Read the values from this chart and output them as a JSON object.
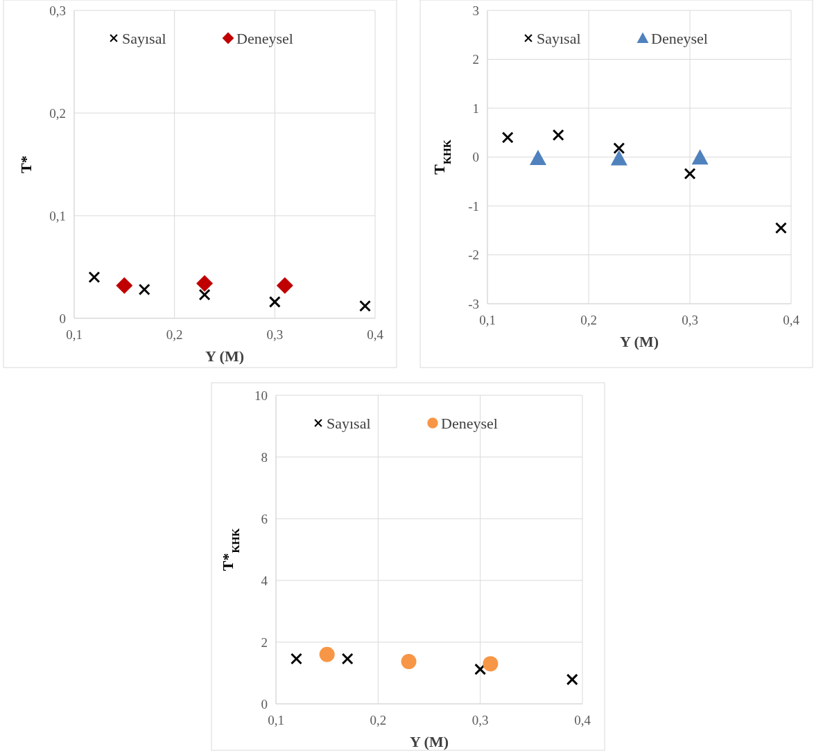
{
  "chart_data": [
    {
      "type": "scatter",
      "xlabel": "Y (M)",
      "ylabel": "T*",
      "xlim": [
        0.1,
        0.4
      ],
      "ylim": [
        0,
        0.3
      ],
      "xticks": [
        {
          "value": 0.1,
          "label": "0,1"
        },
        {
          "value": 0.2,
          "label": "0,2"
        },
        {
          "value": 0.3,
          "label": "0,3"
        },
        {
          "value": 0.4,
          "label": "0,4"
        }
      ],
      "yticks": [
        0,
        {
          "value": 0.1,
          "label": "0,1"
        },
        {
          "value": 0.2,
          "label": "0,2"
        },
        {
          "value": 0.3,
          "label": "0,3"
        }
      ],
      "grid": true,
      "legend": "top",
      "series": [
        {
          "name": "Sayısal",
          "color": "#000000",
          "marker": "cross",
          "x": [
            0.12,
            0.17,
            0.23,
            0.3,
            0.39
          ],
          "values": [
            0.04,
            0.028,
            0.023,
            0.016,
            0.012
          ]
        },
        {
          "name": "Deneysel",
          "color": "#c00000",
          "marker": "diamond",
          "x": [
            0.15,
            0.23,
            0.31
          ],
          "values": [
            0.032,
            0.034,
            0.032
          ]
        }
      ]
    },
    {
      "type": "scatter",
      "xlabel": "Y (M)",
      "ylabel": "T$_{KHK}$",
      "xlim": [
        0.1,
        0.4
      ],
      "ylim": [
        -3,
        3
      ],
      "xticks": [
        {
          "value": 0.1,
          "label": "0,1"
        },
        {
          "value": 0.2,
          "label": "0,2"
        },
        {
          "value": 0.3,
          "label": "0,3"
        },
        {
          "value": 0.4,
          "label": "0,4"
        }
      ],
      "yticks": [
        -3,
        -2,
        -1,
        0,
        1,
        2,
        3
      ],
      "grid": true,
      "legend": "top",
      "series": [
        {
          "name": "Sayısal",
          "color": "#000000",
          "marker": "cross",
          "x": [
            0.12,
            0.17,
            0.23,
            0.3,
            0.39
          ],
          "values": [
            0.4,
            0.45,
            0.18,
            -0.34,
            -1.45
          ]
        },
        {
          "name": "Deneysel",
          "color": "#4f81bd",
          "marker": "triangle",
          "x": [
            0.15,
            0.23,
            0.31
          ],
          "values": [
            -0.02,
            -0.03,
            -0.01
          ]
        }
      ]
    },
    {
      "type": "scatter",
      "xlabel": "Y (M)",
      "ylabel": "T*$_{KHK}$",
      "xlim": [
        0.1,
        0.4
      ],
      "ylim": [
        0,
        10
      ],
      "xticks": [
        {
          "value": 0.1,
          "label": "0,1"
        },
        {
          "value": 0.2,
          "label": "0,2"
        },
        {
          "value": 0.3,
          "label": "0,3"
        },
        {
          "value": 0.4,
          "label": "0,4"
        }
      ],
      "yticks": [
        0,
        2,
        4,
        6,
        8,
        10
      ],
      "grid": true,
      "legend": "top",
      "series": [
        {
          "name": "Sayısal",
          "color": "#000000",
          "marker": "cross",
          "x": [
            0.12,
            0.17,
            0.3,
            0.39
          ],
          "values": [
            1.46,
            1.46,
            1.12,
            0.79
          ]
        },
        {
          "name": "Deneysel",
          "color": "#f79646",
          "marker": "circle",
          "x": [
            0.15,
            0.23,
            0.31
          ],
          "values": [
            1.6,
            1.37,
            1.3
          ]
        }
      ]
    }
  ]
}
